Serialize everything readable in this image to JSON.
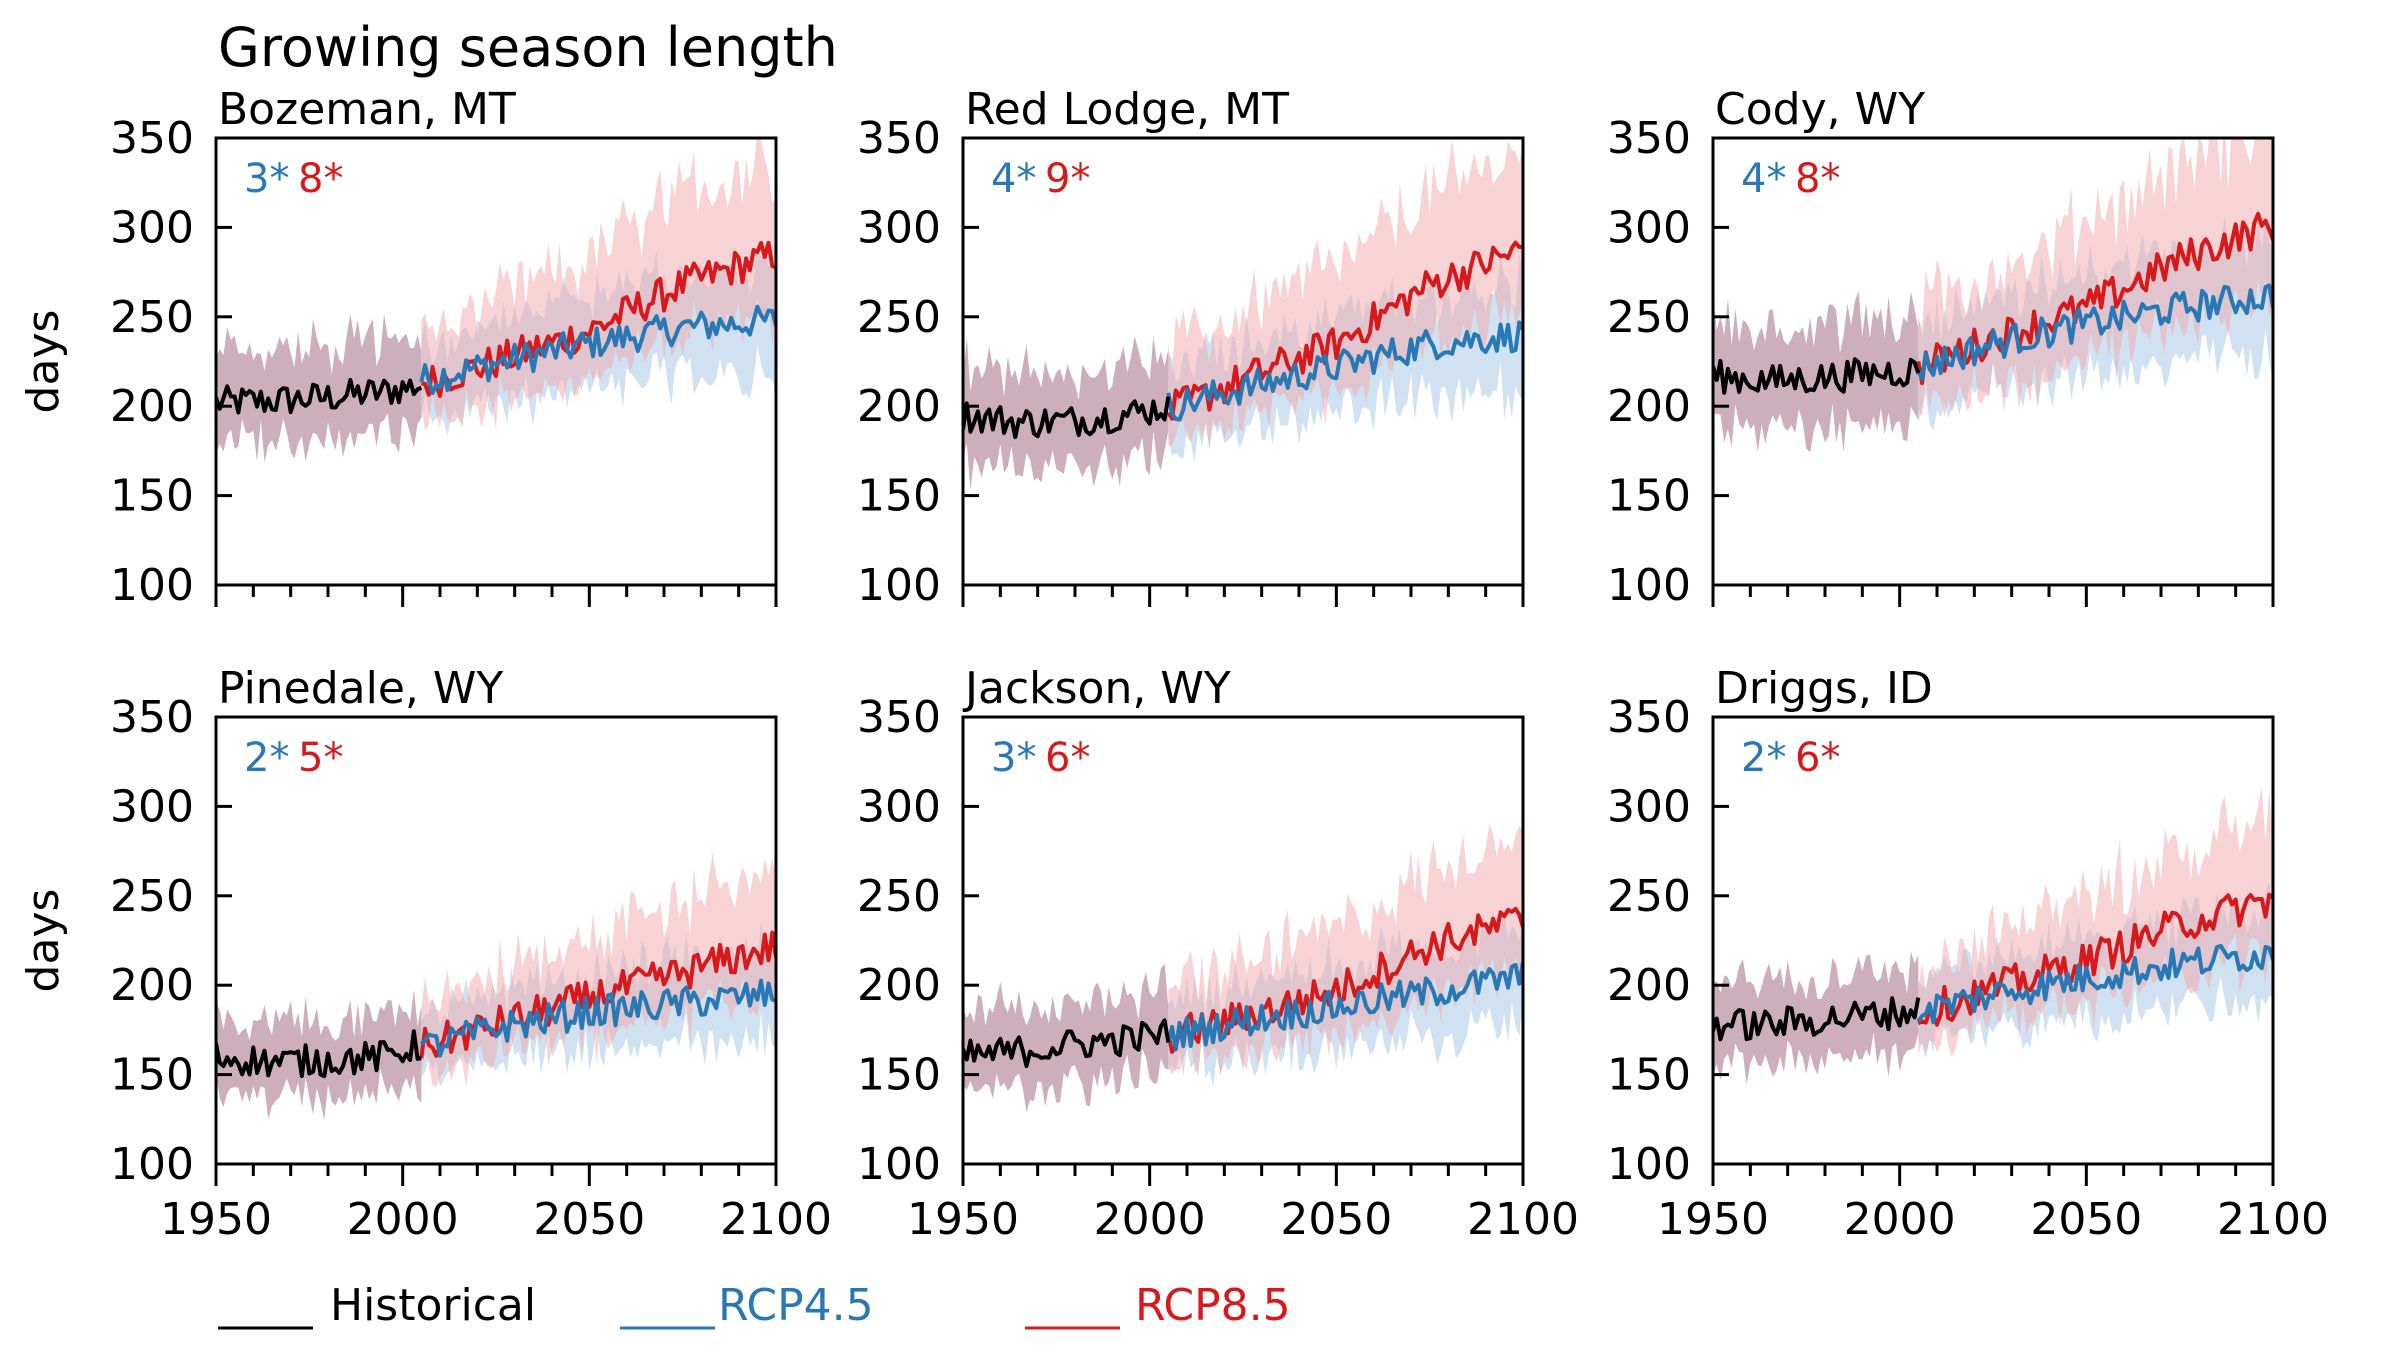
{
  "chart_data": {
    "type": "line",
    "title": "Growing season length",
    "ylabel": "days",
    "xlim": [
      1950,
      2100
    ],
    "ylim": [
      100,
      350
    ],
    "xticks": [
      1950,
      2000,
      2050,
      2100
    ],
    "xticks_minor_step": 10,
    "yticks": [
      100,
      150,
      200,
      250,
      300,
      350
    ],
    "grid": false,
    "legend": {
      "placement": "bottom-left",
      "entries": [
        {
          "name": "Historical",
          "color": "#000000"
        },
        {
          "name": "RCP4.5",
          "color": "#2878b5"
        },
        {
          "name": "RCP8.5",
          "color": "#d7191c"
        }
      ]
    },
    "colors": {
      "historical": "#000000",
      "rcp45": "#2878b5",
      "rcp85": "#d7191c",
      "rcp45_band": "#a9cbe6",
      "rcp85_band": "#f2a8ab",
      "hist_band": "#b68d9d"
    },
    "note": "Series given as anchor points (year, days); ensemble envelope given as +/- spread in days.",
    "panels": [
      {
        "name": "Bozeman, MT",
        "annot_rcp45": "3*",
        "annot_rcp85": "8*",
        "historical": {
          "x": [
            1950,
            1965,
            1980,
            1995,
            2005
          ],
          "y": [
            202,
            203,
            205,
            208,
            212
          ]
        },
        "rcp45": {
          "x": [
            2006,
            2025,
            2050,
            2075,
            2100
          ],
          "y": [
            215,
            224,
            235,
            244,
            248
          ]
        },
        "rcp85": {
          "x": [
            2006,
            2025,
            2050,
            2075,
            2100
          ],
          "y": [
            213,
            225,
            242,
            268,
            285
          ]
        },
        "spread": 25
      },
      {
        "name": "Red Lodge, MT",
        "annot_rcp45": "4*",
        "annot_rcp85": "9*",
        "historical": {
          "x": [
            1950,
            1965,
            1980,
            1995,
            2005
          ],
          "y": [
            195,
            191,
            192,
            196,
            200
          ]
        },
        "rcp45": {
          "x": [
            2006,
            2025,
            2050,
            2075,
            2100
          ],
          "y": [
            200,
            210,
            222,
            235,
            240
          ]
        },
        "rcp85": {
          "x": [
            2006,
            2025,
            2050,
            2075,
            2100
          ],
          "y": [
            198,
            215,
            235,
            268,
            288
          ]
        },
        "spread": 26
      },
      {
        "name": "Cody, WY",
        "annot_rcp45": "4*",
        "annot_rcp85": "8*",
        "historical": {
          "x": [
            1950,
            1965,
            1980,
            1995,
            2005
          ],
          "y": [
            217,
            214,
            216,
            219,
            220
          ]
        },
        "rcp45": {
          "x": [
            2006,
            2025,
            2050,
            2075,
            2100
          ],
          "y": [
            222,
            235,
            246,
            255,
            262
          ]
        },
        "rcp85": {
          "x": [
            2006,
            2025,
            2050,
            2075,
            2100
          ],
          "y": [
            222,
            238,
            255,
            282,
            302
          ]
        },
        "spread": 28
      },
      {
        "name": "Pinedale, WY",
        "annot_rcp45": "2*",
        "annot_rcp85": "5*",
        "historical": {
          "x": [
            1950,
            1965,
            1980,
            1995,
            2005
          ],
          "y": [
            160,
            157,
            158,
            160,
            167
          ]
        },
        "rcp45": {
          "x": [
            2006,
            2025,
            2050,
            2075,
            2100
          ],
          "y": [
            165,
            176,
            185,
            190,
            195
          ]
        },
        "rcp85": {
          "x": [
            2006,
            2025,
            2050,
            2075,
            2100
          ],
          "y": [
            166,
            178,
            193,
            207,
            222
          ]
        },
        "spread": 20
      },
      {
        "name": "Jackson, WY",
        "annot_rcp45": "3*",
        "annot_rcp85": "6*",
        "historical": {
          "x": [
            1950,
            1965,
            1980,
            1995,
            2005
          ],
          "y": [
            160,
            163,
            167,
            170,
            173
          ]
        },
        "rcp45": {
          "x": [
            2006,
            2025,
            2050,
            2075,
            2100
          ],
          "y": [
            172,
            180,
            188,
            196,
            205
          ]
        },
        "rcp85": {
          "x": [
            2006,
            2025,
            2050,
            2075,
            2100
          ],
          "y": [
            172,
            182,
            197,
            222,
            237
          ]
        },
        "spread": 22
      },
      {
        "name": "Driggs, ID",
        "annot_rcp45": "2*",
        "annot_rcp85": "6*",
        "historical": {
          "x": [
            1950,
            1965,
            1980,
            1995,
            2005
          ],
          "y": [
            178,
            178,
            181,
            184,
            186
          ]
        },
        "rcp45": {
          "x": [
            2006,
            2025,
            2050,
            2075,
            2100
          ],
          "y": [
            186,
            195,
            204,
            212,
            218
          ]
        },
        "rcp85": {
          "x": [
            2006,
            2025,
            2050,
            2075,
            2100
          ],
          "y": [
            185,
            198,
            214,
            234,
            248
          ]
        },
        "spread": 22
      }
    ]
  }
}
